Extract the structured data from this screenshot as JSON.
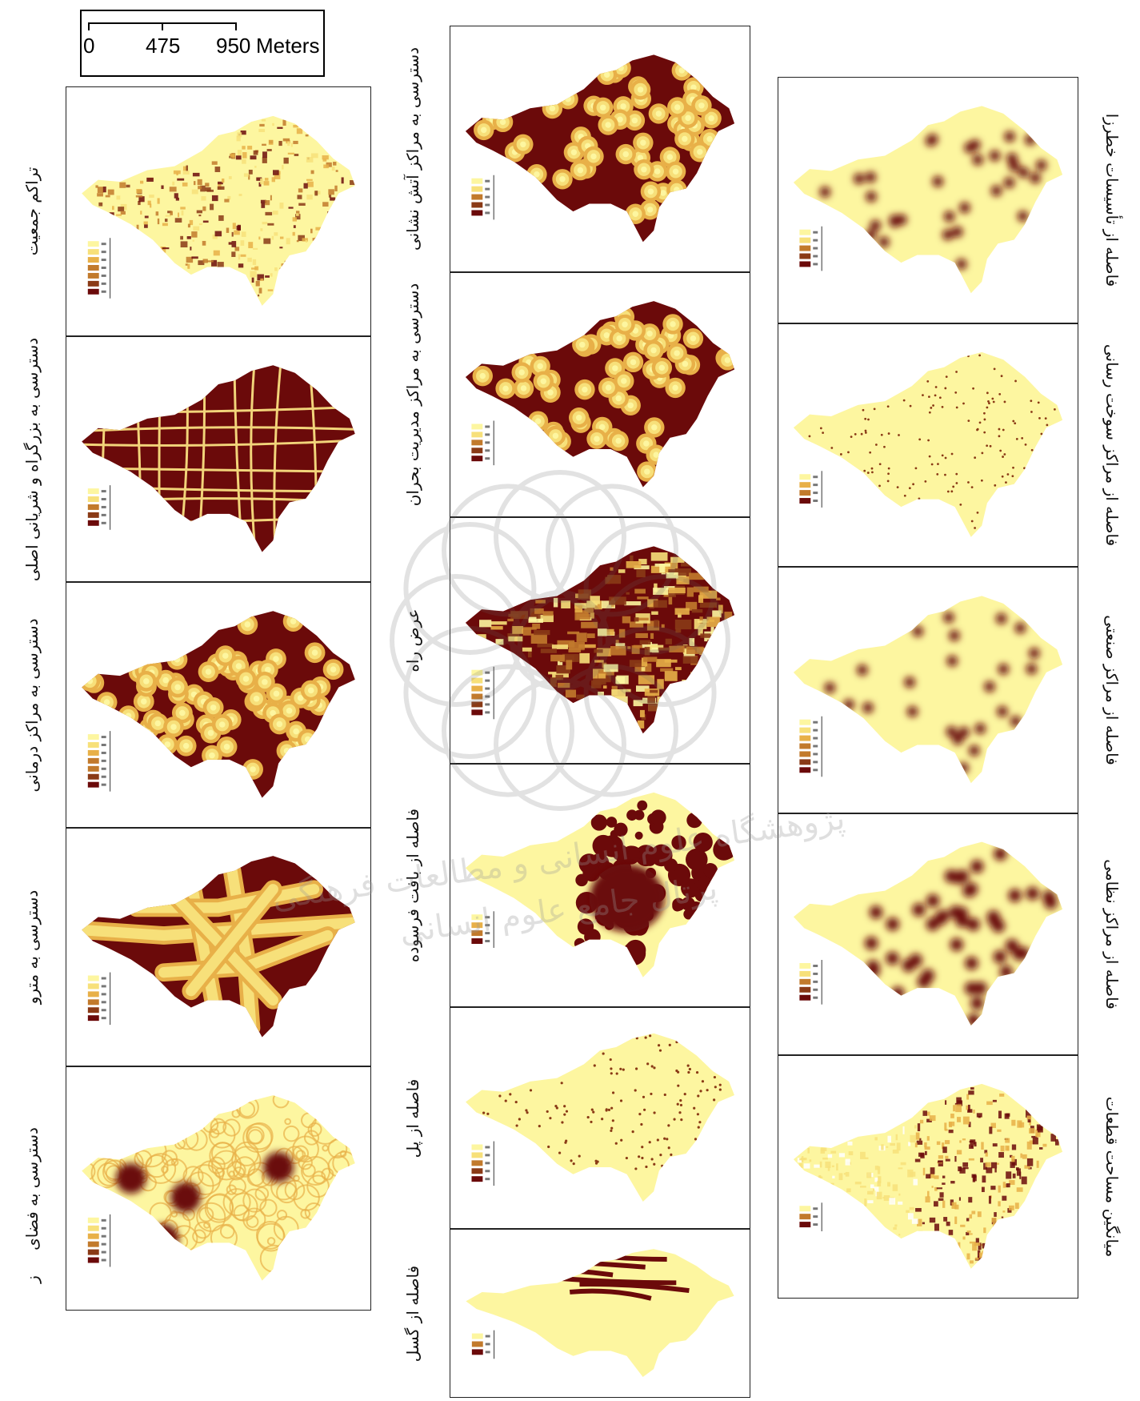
{
  "scale_bar": {
    "ticks": [
      "0",
      "475",
      "950"
    ],
    "unit": "Meters"
  },
  "palette": {
    "light": "#fdf6a0",
    "l2": "#f7e07a",
    "l3": "#e8b048",
    "l4": "#c27a2c",
    "l5": "#8a3a16",
    "dark": "#6b0a0a",
    "road": "#f2d47a"
  },
  "left_column": [
    {
      "label": "تراکم جمعیت",
      "style": "density",
      "legend_classes": 7
    },
    {
      "label": "دسترسی به بزرگراه و شریانی اصلی",
      "style": "roads",
      "legend_classes": 5
    },
    {
      "label": "دسترسی به مراکز درمانی",
      "style": "buffers_dark",
      "legend_classes": 7
    },
    {
      "label": "دسترسی به مترو",
      "style": "metro",
      "legend_classes": 6
    },
    {
      "label": "دسترسی به فضای",
      "style": "green",
      "legend_classes": 6
    }
  ],
  "left_footer_label": "ز",
  "middle_column": [
    {
      "label": "دسترسی به مراکز آتش نشانی",
      "style": "buffers_dark",
      "legend_classes": 5
    },
    {
      "label": "دسترسی به مراکز مدیریت بحران",
      "style": "buffers_dark",
      "legend_classes": 5
    },
    {
      "label": "عرض راه",
      "style": "roadwidth",
      "legend_classes": 6
    },
    {
      "label": "فاصله از بافت فرسوده",
      "style": "worn",
      "legend_classes": 4
    },
    {
      "label": "فاصله از پل",
      "style": "bridge",
      "legend_classes": 5
    },
    {
      "label": "فاصله از گسل",
      "style": "fault",
      "legend_classes": 3
    }
  ],
  "right_column": [
    {
      "label": "فاصله از تأسیسات خطرزا",
      "style": "hazard",
      "legend_classes": 5
    },
    {
      "label": "فاصله از مراکز سوخت رسانی",
      "style": "fuel",
      "legend_classes": 4
    },
    {
      "label": "فاصله از مراکز صنعتی",
      "style": "industry",
      "legend_classes": 7
    },
    {
      "label": "فاصله از مراکز نظامی",
      "style": "military",
      "legend_classes": 5
    },
    {
      "label": "میانگین مساحت قطعات",
      "style": "parcels",
      "legend_classes": 3
    }
  ],
  "watermark": {
    "line1": "پژوهشگاه علوم انسانی و مطالعات فرهنگی",
    "line2": "پرتال جامع علوم انسانی"
  }
}
